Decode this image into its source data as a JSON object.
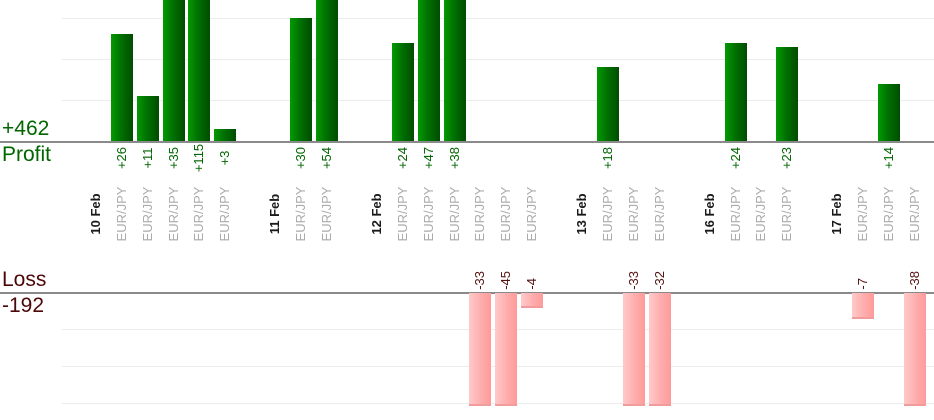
{
  "chart_data": {
    "type": "bar",
    "symbol_label": "EUR/JPY",
    "panels": {
      "profit": {
        "label": "Profit",
        "total": "+462"
      },
      "loss": {
        "label": "Loss",
        "total": "-192"
      }
    },
    "groups": [
      {
        "date": "10 Feb",
        "values": [
          26,
          11,
          35,
          115,
          3
        ]
      },
      {
        "date": "11 Feb",
        "values": [
          30,
          54
        ]
      },
      {
        "date": "12 Feb",
        "values": [
          24,
          47,
          38,
          -33,
          -45,
          -4
        ]
      },
      {
        "date": "13 Feb",
        "values": [
          18,
          -33,
          -32
        ]
      },
      {
        "date": "16 Feb",
        "values": [
          24,
          0,
          23
        ]
      },
      {
        "date": "17 Feb",
        "values": [
          -7,
          14,
          -38
        ]
      }
    ],
    "colors": {
      "profit_bar": "#017101",
      "profit_text": "#006600",
      "loss_bar": "#ffaaaa",
      "loss_text": "#551111",
      "date_text": "#1a1a1a",
      "symbol_text": "#ababab",
      "axis_line": "#8a8a8a",
      "gridline": "#ececec"
    },
    "layout_hints": {
      "grid": "horizontal gridlines every 10 units in both panels",
      "value_labels": "rotated 90 degrees counterclockwise",
      "profit_bars_clipped": "tall profit bars are clipped at the top edge",
      "loss_bars_clipped": "tall loss bars are clipped at the bottom edge"
    }
  }
}
